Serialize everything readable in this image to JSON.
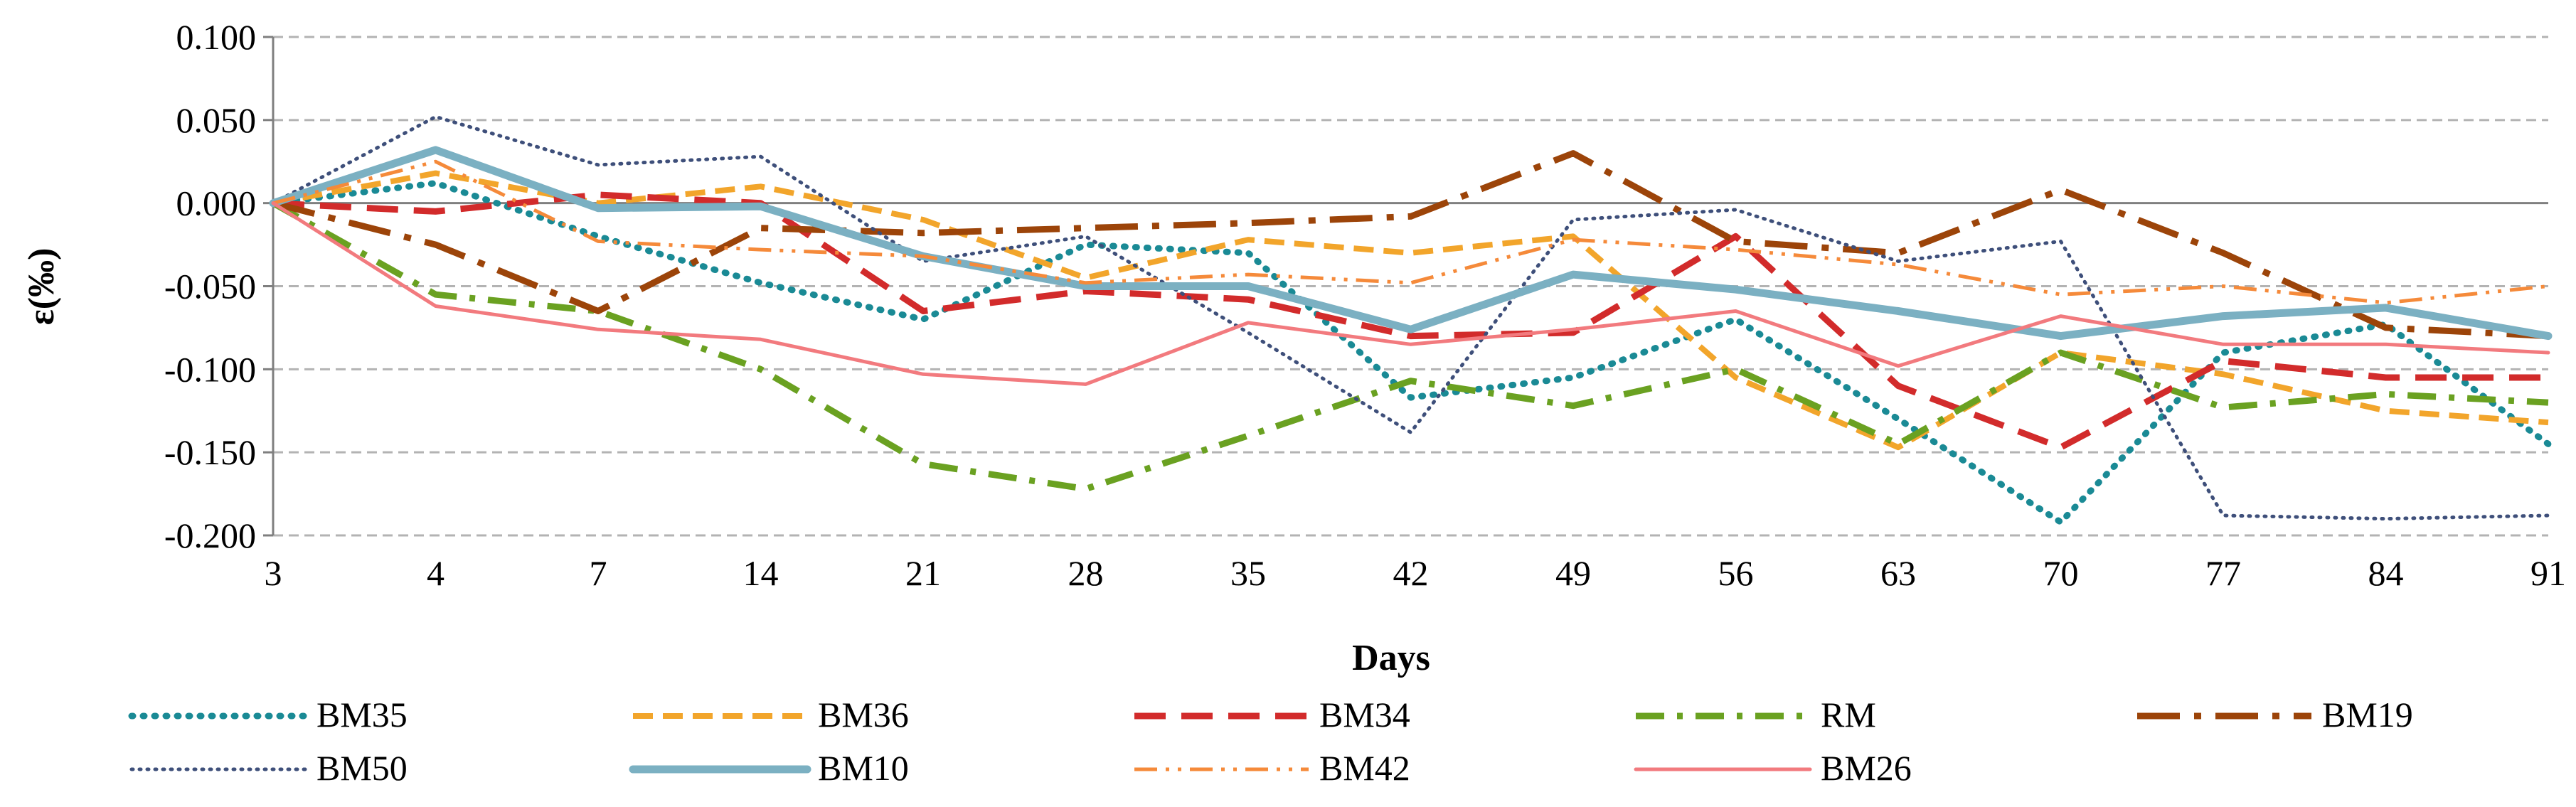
{
  "chart_data": {
    "type": "line",
    "title": "",
    "xlabel": "Days",
    "ylabel": "ε(‰)",
    "categories": [
      "3",
      "4",
      "7",
      "14",
      "21",
      "28",
      "35",
      "42",
      "49",
      "56",
      "63",
      "70",
      "77",
      "84",
      "91"
    ],
    "ylim": [
      -0.2,
      0.1
    ],
    "yticks": [
      "0.100",
      "0.050",
      "0.000",
      "-0.050",
      "-0.100",
      "-0.150",
      "-0.200"
    ],
    "grid": true,
    "legend_position": "bottom",
    "series": [
      {
        "name": "BM35",
        "color": "#1a8a95",
        "dash": "dotted-fine",
        "values": [
          0,
          0.012,
          -0.02,
          -0.048,
          -0.07,
          -0.025,
          -0.03,
          -0.117,
          -0.105,
          -0.07,
          -0.13,
          -0.192,
          -0.09,
          -0.073,
          -0.145
        ]
      },
      {
        "name": "BM36",
        "color": "#f2a52b",
        "dash": "dash",
        "values": [
          0,
          0.018,
          0.0,
          0.01,
          -0.01,
          -0.045,
          -0.022,
          -0.03,
          -0.02,
          -0.105,
          -0.147,
          -0.09,
          -0.103,
          -0.125,
          -0.132
        ]
      },
      {
        "name": "BM34",
        "color": "#d22b2b",
        "dash": "longdash",
        "values": [
          0,
          -0.005,
          0.005,
          0.0,
          -0.065,
          -0.053,
          -0.058,
          -0.08,
          -0.078,
          -0.02,
          -0.11,
          -0.147,
          -0.095,
          -0.105,
          -0.105
        ]
      },
      {
        "name": "RM",
        "color": "#6aa121",
        "dash": "dashdot",
        "values": [
          0,
          -0.055,
          -0.065,
          -0.1,
          -0.157,
          -0.172,
          -0.14,
          -0.107,
          -0.122,
          -0.1,
          -0.145,
          -0.09,
          -0.123,
          -0.115,
          -0.12
        ]
      },
      {
        "name": "BM19",
        "color": "#9c4409",
        "dash": "longdashdot",
        "values": [
          0,
          -0.025,
          -0.065,
          -0.015,
          -0.018,
          -0.015,
          -0.012,
          -0.008,
          0.03,
          -0.023,
          -0.03,
          0.008,
          -0.03,
          -0.075,
          -0.08
        ]
      },
      {
        "name": "BM50",
        "color": "#3e4f7a",
        "dash": "dotted",
        "values": [
          0,
          0.052,
          0.023,
          0.028,
          -0.035,
          -0.02,
          -0.078,
          -0.138,
          -0.01,
          -0.004,
          -0.035,
          -0.023,
          -0.188,
          -0.19,
          -0.188
        ]
      },
      {
        "name": "BM10",
        "color": "#7bb0c2",
        "dash": "solid-thick",
        "values": [
          0,
          0.032,
          -0.003,
          -0.002,
          -0.032,
          -0.05,
          -0.05,
          -0.076,
          -0.043,
          -0.052,
          -0.065,
          -0.08,
          -0.068,
          -0.063,
          -0.08
        ]
      },
      {
        "name": "BM42",
        "color": "#f58a3a",
        "dash": "dashdotdot",
        "values": [
          0,
          0.025,
          -0.023,
          -0.028,
          -0.032,
          -0.048,
          -0.043,
          -0.048,
          -0.022,
          -0.028,
          -0.037,
          -0.055,
          -0.05,
          -0.06,
          -0.05
        ]
      },
      {
        "name": "BM26",
        "color": "#f27a7e",
        "dash": "solid",
        "values": [
          0,
          -0.062,
          -0.076,
          -0.082,
          -0.103,
          -0.109,
          -0.072,
          -0.085,
          -0.076,
          -0.065,
          -0.098,
          -0.068,
          -0.085,
          -0.085,
          -0.09
        ]
      }
    ]
  }
}
